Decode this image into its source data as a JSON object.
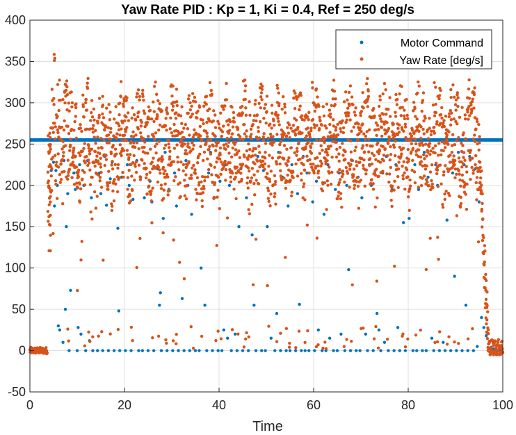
{
  "chart_data": {
    "type": "scatter",
    "title": "Yaw Rate PID : Kp = 1, Ki = 0.4, Ref = 250 deg/s",
    "xlabel": "Time",
    "ylabel": "",
    "xlim": [
      0,
      100
    ],
    "ylim": [
      -50,
      400
    ],
    "xticks": [
      0,
      20,
      40,
      60,
      80,
      100
    ],
    "yticks": [
      -50,
      0,
      50,
      100,
      150,
      200,
      250,
      300,
      350,
      400
    ],
    "grid": true,
    "legend": "top-right",
    "series": [
      {
        "name": "Motor Command",
        "color": "#0072BD",
        "saturation_level": 255,
        "points": [
          [
            0.5,
            0
          ],
          [
            1,
            0
          ],
          [
            1.5,
            0
          ],
          [
            2,
            0
          ],
          [
            2.5,
            0
          ],
          [
            3,
            0
          ],
          [
            3.5,
            0
          ],
          [
            4,
            255
          ],
          [
            4.3,
            255
          ],
          [
            4.5,
            218
          ],
          [
            5,
            228
          ],
          [
            5.2,
            175
          ],
          [
            5.5,
            218
          ],
          [
            5.8,
            200
          ],
          [
            6,
            30
          ],
          [
            6.3,
            25
          ],
          [
            6.8,
            255
          ],
          [
            7,
            10
          ],
          [
            7.2,
            230
          ],
          [
            7.5,
            50
          ],
          [
            7.7,
            150
          ],
          [
            8,
            190
          ],
          [
            8.3,
            0
          ],
          [
            8.6,
            73
          ],
          [
            9,
            255
          ],
          [
            9.3,
            215
          ],
          [
            9.6,
            195
          ],
          [
            10,
            0
          ],
          [
            10.2,
            28
          ],
          [
            10.5,
            225
          ],
          [
            10.8,
            20
          ],
          [
            11,
            255
          ],
          [
            11.4,
            200
          ],
          [
            11.8,
            0
          ],
          [
            12.2,
            230
          ],
          [
            12.6,
            12
          ],
          [
            13,
            185
          ],
          [
            13.3,
            0
          ],
          [
            13.6,
            255
          ],
          [
            14,
            215
          ],
          [
            14.3,
            0
          ],
          [
            14.7,
            215
          ],
          [
            15,
            190
          ],
          [
            15.4,
            0
          ],
          [
            15.8,
            235
          ],
          [
            16.2,
            176
          ],
          [
            16.6,
            0
          ],
          [
            17,
            208
          ],
          [
            17.4,
            228
          ],
          [
            17.8,
            0
          ],
          [
            18.2,
            255
          ],
          [
            18.6,
            148
          ],
          [
            18.8,
            48
          ],
          [
            19,
            0
          ],
          [
            19.4,
            210
          ],
          [
            19.8,
            255
          ],
          [
            20.2,
            0
          ],
          [
            20.6,
            225
          ],
          [
            21,
            200
          ],
          [
            21.4,
            0
          ],
          [
            21.8,
            183
          ],
          [
            22.2,
            255
          ],
          [
            22.6,
            230
          ],
          [
            23,
            0
          ],
          [
            23.4,
            210
          ],
          [
            23.8,
            0
          ],
          [
            24.2,
            185
          ],
          [
            24.6,
            255
          ],
          [
            25,
            0
          ],
          [
            25.4,
            205
          ],
          [
            25.8,
            180
          ],
          [
            26.2,
            0
          ],
          [
            26.6,
            255
          ],
          [
            27,
            220
          ],
          [
            27.4,
            55
          ],
          [
            27.6,
            70
          ],
          [
            27.8,
            0
          ],
          [
            28.2,
            160
          ],
          [
            28.6,
            240
          ],
          [
            29,
            0
          ],
          [
            29.4,
            195
          ],
          [
            29.8,
            255
          ],
          [
            30.2,
            0
          ],
          [
            30.6,
            215
          ],
          [
            31,
            175
          ],
          [
            31.4,
            0
          ],
          [
            31.8,
            255
          ],
          [
            32.2,
            63
          ],
          [
            32.6,
            0
          ],
          [
            33,
            230
          ],
          [
            33.4,
            200
          ],
          [
            33.8,
            0
          ],
          [
            34.2,
            165
          ],
          [
            34.6,
            255
          ],
          [
            35,
            0
          ],
          [
            35.4,
            190
          ],
          [
            35.8,
            0
          ],
          [
            36.2,
            100
          ],
          [
            36.6,
            255
          ],
          [
            37,
            55
          ],
          [
            37.4,
            0
          ],
          [
            37.8,
            215
          ],
          [
            38.2,
            240
          ],
          [
            38.6,
            0
          ],
          [
            39,
            185
          ],
          [
            39.4,
            255
          ],
          [
            39.8,
            0
          ],
          [
            40.2,
            205
          ],
          [
            40.6,
            0
          ],
          [
            41,
            25
          ],
          [
            41.4,
            225
          ],
          [
            41.8,
            15
          ],
          [
            42.2,
            200
          ],
          [
            42.6,
            0
          ],
          [
            43,
            255
          ],
          [
            43.4,
            20
          ],
          [
            43.8,
            0
          ],
          [
            44.2,
            150
          ],
          [
            44.6,
            220
          ],
          [
            45,
            0
          ],
          [
            45.4,
            255
          ],
          [
            45.8,
            185
          ],
          [
            46.2,
            0
          ],
          [
            46.6,
            205
          ],
          [
            47,
            140
          ],
          [
            47.4,
            55
          ],
          [
            47.8,
            0
          ],
          [
            48.2,
            235
          ],
          [
            48.6,
            255
          ],
          [
            49,
            0
          ],
          [
            49.4,
            218
          ],
          [
            49.8,
            0
          ],
          [
            50.2,
            150
          ],
          [
            50.6,
            255
          ],
          [
            51,
            15
          ],
          [
            51.4,
            200
          ],
          [
            51.8,
            0
          ],
          [
            52.2,
            45
          ],
          [
            52.6,
            240
          ],
          [
            53,
            0
          ],
          [
            53.4,
            210
          ],
          [
            53.8,
            255
          ],
          [
            54.2,
            0
          ],
          [
            54.6,
            175
          ],
          [
            55,
            0
          ],
          [
            55.4,
            225
          ],
          [
            55.8,
            255
          ],
          [
            56.2,
            0
          ],
          [
            56.6,
            190
          ],
          [
            57,
            56
          ],
          [
            57.4,
            0
          ],
          [
            57.8,
            235
          ],
          [
            58.2,
            0
          ],
          [
            58.6,
            215
          ],
          [
            59,
            0
          ],
          [
            59.4,
            255
          ],
          [
            59.8,
            180
          ],
          [
            60.2,
            0
          ],
          [
            60.6,
            205
          ],
          [
            61,
            25
          ],
          [
            61.4,
            255
          ],
          [
            61.8,
            0
          ],
          [
            62.2,
            165
          ],
          [
            62.6,
            0
          ],
          [
            63,
            225
          ],
          [
            63.4,
            15
          ],
          [
            63.8,
            255
          ],
          [
            64.2,
            0
          ],
          [
            64.6,
            195
          ],
          [
            65,
            0
          ],
          [
            65.4,
            215
          ],
          [
            65.8,
            20
          ],
          [
            66.2,
            255
          ],
          [
            66.6,
            0
          ],
          [
            67,
            200
          ],
          [
            67.4,
            98
          ],
          [
            67.8,
            0
          ],
          [
            68.2,
            230
          ],
          [
            68.6,
            255
          ],
          [
            69,
            0
          ],
          [
            69.4,
            210
          ],
          [
            69.8,
            0
          ],
          [
            70.2,
            185
          ],
          [
            70.6,
            255
          ],
          [
            71,
            20
          ],
          [
            71.4,
            0
          ],
          [
            71.8,
            225
          ],
          [
            72.2,
            200
          ],
          [
            72.6,
            0
          ],
          [
            73,
            255
          ],
          [
            73.4,
            45
          ],
          [
            73.8,
            25
          ],
          [
            74.2,
            0
          ],
          [
            74.6,
            215
          ],
          [
            75,
            10
          ],
          [
            75.4,
            235
          ],
          [
            75.8,
            0
          ],
          [
            76.2,
            255
          ],
          [
            76.6,
            195
          ],
          [
            77,
            0
          ],
          [
            77.4,
            225
          ],
          [
            77.8,
            28
          ],
          [
            78.2,
            0
          ],
          [
            78.6,
            255
          ],
          [
            79,
            155
          ],
          [
            79.4,
            0
          ],
          [
            79.8,
            210
          ],
          [
            80.2,
            160
          ],
          [
            80.6,
            255
          ],
          [
            81,
            0
          ],
          [
            81.4,
            225
          ],
          [
            81.8,
            0
          ],
          [
            82.2,
            195
          ],
          [
            82.6,
            255
          ],
          [
            83,
            0
          ],
          [
            83.4,
            240
          ],
          [
            83.8,
            0
          ],
          [
            84.2,
            210
          ],
          [
            84.6,
            255
          ],
          [
            85,
            15
          ],
          [
            85.4,
            0
          ],
          [
            85.8,
            225
          ],
          [
            86.2,
            200
          ],
          [
            86.6,
            0
          ],
          [
            87,
            255
          ],
          [
            87.4,
            10
          ],
          [
            87.8,
            0
          ],
          [
            88.2,
            158
          ],
          [
            88.6,
            255
          ],
          [
            89,
            0
          ],
          [
            89.4,
            215
          ],
          [
            89.8,
            90
          ],
          [
            90.2,
            0
          ],
          [
            90.6,
            240
          ],
          [
            91,
            255
          ],
          [
            91.4,
            0
          ],
          [
            91.8,
            225
          ],
          [
            92.2,
            55
          ],
          [
            92.6,
            0
          ],
          [
            93,
            235
          ],
          [
            93.4,
            255
          ],
          [
            93.8,
            0
          ],
          [
            94.2,
            220
          ],
          [
            94.6,
            5
          ],
          [
            95,
            180
          ],
          [
            95.5,
            40
          ],
          [
            96,
            28
          ],
          [
            96.5,
            18
          ],
          [
            97,
            8
          ],
          [
            97.5,
            4
          ],
          [
            98,
            2
          ],
          [
            98.5,
            1
          ],
          [
            99,
            0
          ],
          [
            99.5,
            0
          ]
        ]
      },
      {
        "name": "Yaw Rate [deg/s]",
        "color": "#D95319",
        "points": []
      }
    ]
  },
  "legend": {
    "entries": [
      "Motor Command",
      "Yaw Rate [deg/s]"
    ]
  }
}
